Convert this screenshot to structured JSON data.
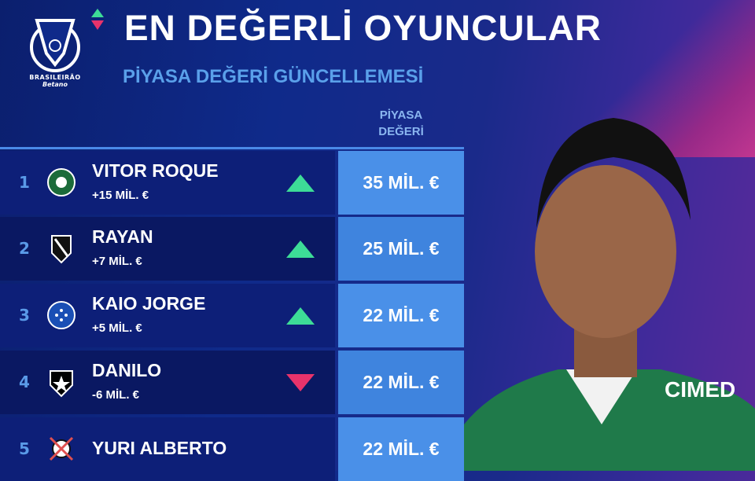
{
  "header": {
    "title": "EN DEĞERLİ OYUNCULAR",
    "subtitle": "PİYASA DEĞERİ GÜNCELLEMESİ",
    "column_header_line1": "PİYASA",
    "column_header_line2": "DEĞERİ"
  },
  "logo": {
    "line1": "BRASILEIRÃO",
    "line2": "Betano"
  },
  "colors": {
    "up": "#3ddc97",
    "down": "#e8336b",
    "value_box": "#4a90e8",
    "accent": "#5aa0ea"
  },
  "players": [
    {
      "rank": "1",
      "name": "VITOR ROQUE",
      "change": "+15 MİL. €",
      "trend": "up",
      "value": "35 MİL. €",
      "club_icon": "palmeiras-crest-icon"
    },
    {
      "rank": "2",
      "name": "RAYAN",
      "change": "+7 MİL. €",
      "trend": "up",
      "value": "25 MİL. €",
      "club_icon": "vasco-crest-icon"
    },
    {
      "rank": "3",
      "name": "KAIO JORGE",
      "change": "+5 MİL. €",
      "trend": "up",
      "value": "22 MİL. €",
      "club_icon": "cruzeiro-crest-icon"
    },
    {
      "rank": "4",
      "name": "DANILO",
      "change": "-6 MİL. €",
      "trend": "down",
      "value": "22 MİL. €",
      "club_icon": "botafogo-crest-icon"
    },
    {
      "rank": "5",
      "name": "YURI ALBERTO",
      "change": "",
      "trend": "",
      "value": "22 MİL. €",
      "club_icon": "corinthians-crest-icon"
    }
  ],
  "photo": {
    "jersey_sponsor": "CIMED"
  }
}
